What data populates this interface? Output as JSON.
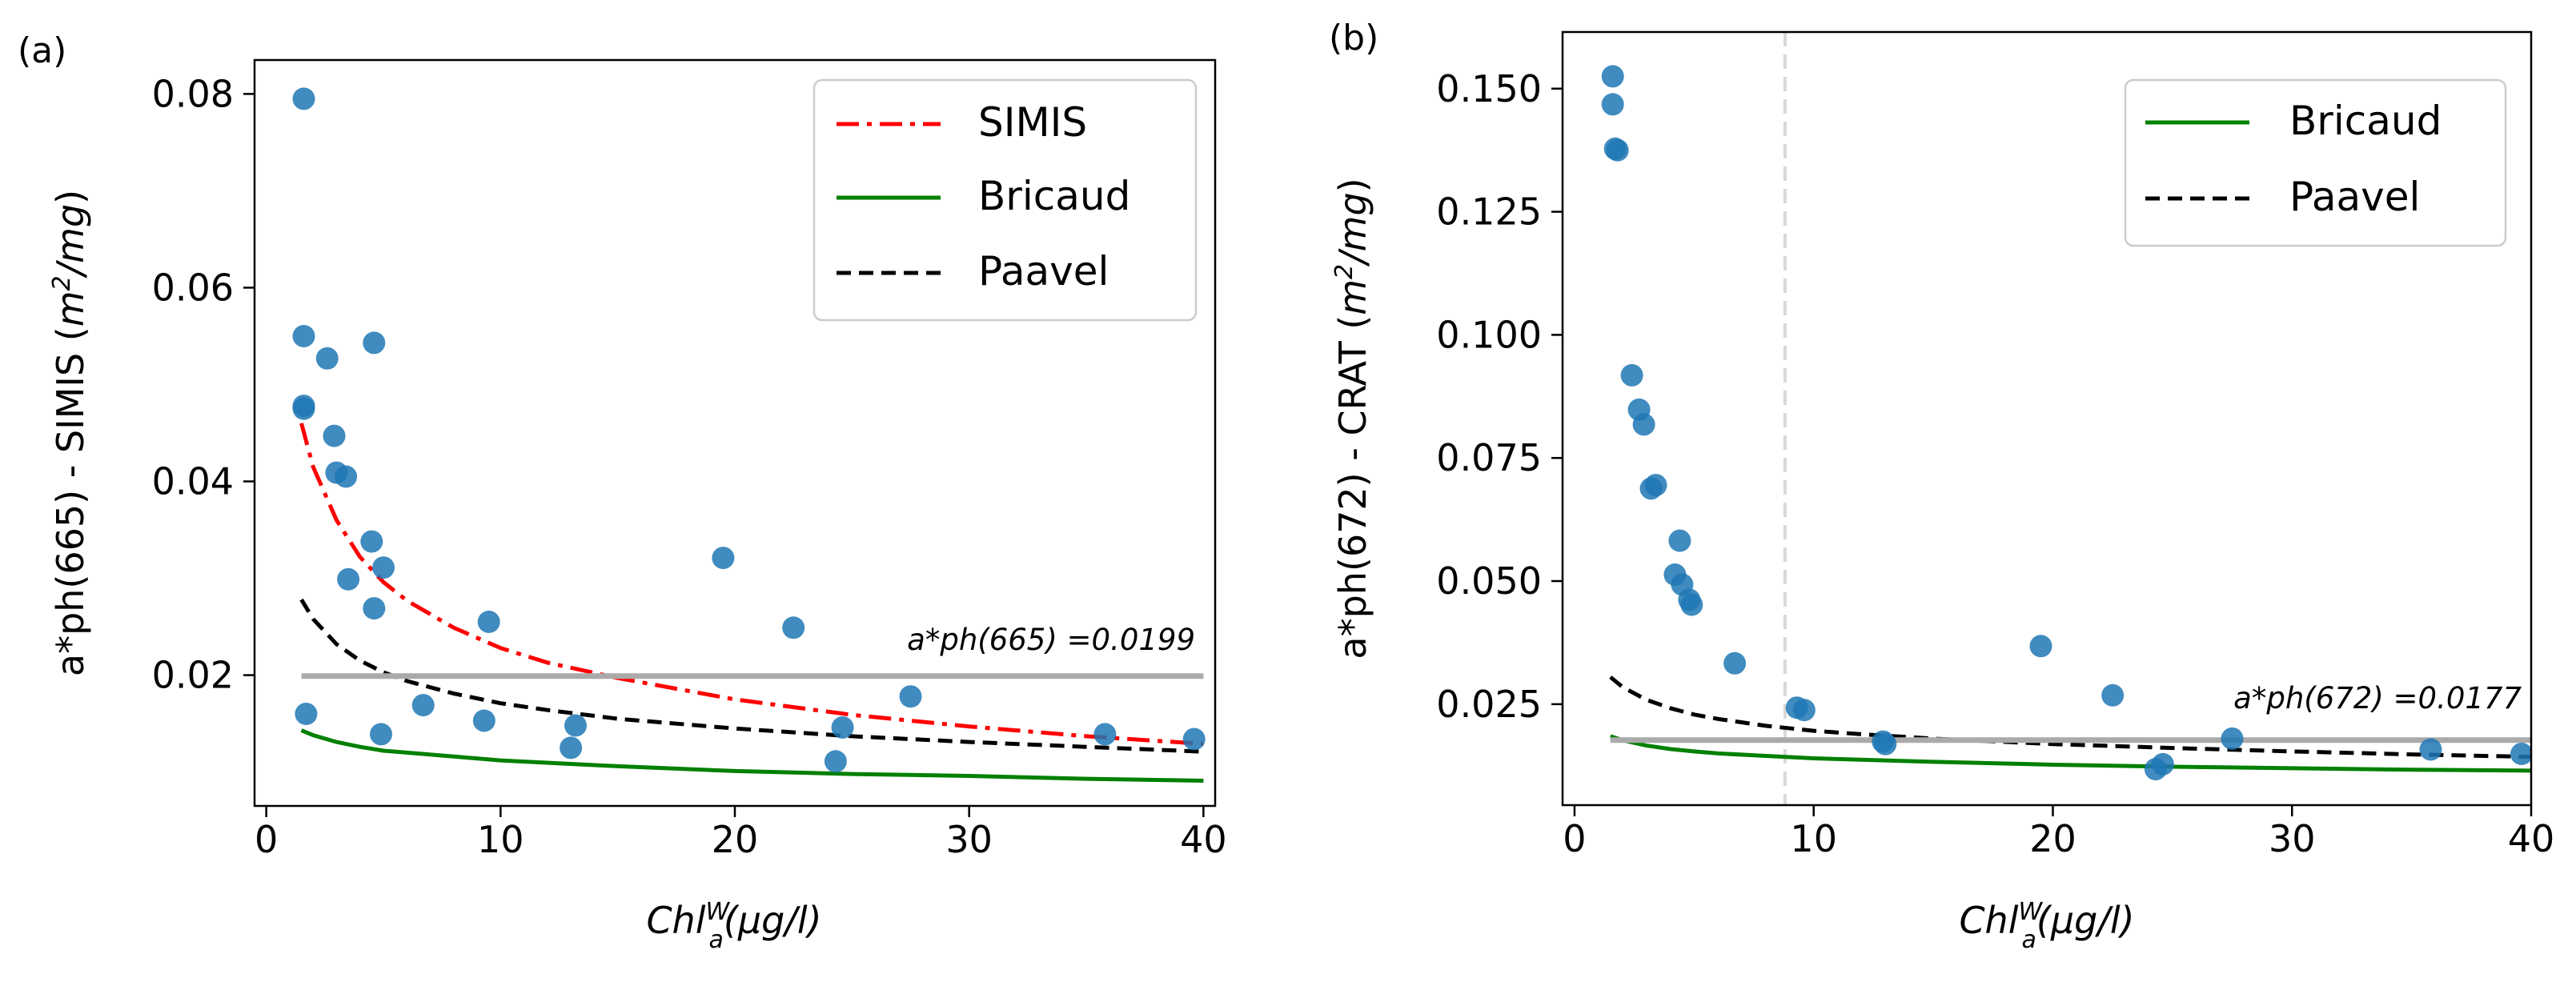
{
  "chart_data": [
    {
      "type": "scatter",
      "panel_label": "(a)",
      "ylabel": "a*ph(665) - SIMIS (m²/mg)",
      "ylabel_prefix": "a*ph(665) - SIMIS (",
      "ylabel_unit_base": "m",
      "ylabel_unit_sup": "2",
      "ylabel_unit_rest": "/mg",
      "ylabel_suffix": ")",
      "xlabel": "Chl_a^W(µg/l)",
      "xlabel_base": "Chl",
      "xlabel_sup": "W",
      "xlabel_sub": "a",
      "xlabel_rest": "(µg/l)",
      "xlim": [
        -0.5,
        40.5
      ],
      "ylim": [
        0.0065,
        0.0835
      ],
      "xticks": [
        0,
        10,
        20,
        30,
        40
      ],
      "yticks": [
        0.02,
        0.04,
        0.06,
        0.08
      ],
      "ytick_labels": [
        "0.02",
        "0.04",
        "0.06",
        "0.08"
      ],
      "points": [
        [
          1.6,
          0.0795
        ],
        [
          1.6,
          0.055
        ],
        [
          2.6,
          0.0527
        ],
        [
          4.6,
          0.0543
        ],
        [
          1.6,
          0.0478
        ],
        [
          1.6,
          0.0475
        ],
        [
          2.9,
          0.0447
        ],
        [
          3.0,
          0.0409
        ],
        [
          3.4,
          0.0405
        ],
        [
          4.5,
          0.0338
        ],
        [
          5.0,
          0.0311
        ],
        [
          3.5,
          0.0299
        ],
        [
          4.6,
          0.0269
        ],
        [
          9.5,
          0.0255
        ],
        [
          19.5,
          0.0321
        ],
        [
          22.5,
          0.0249
        ],
        [
          27.5,
          0.0178
        ],
        [
          1.7,
          0.016
        ],
        [
          4.9,
          0.0139
        ],
        [
          6.7,
          0.0169
        ],
        [
          9.3,
          0.0153
        ],
        [
          13.2,
          0.0148
        ],
        [
          13.0,
          0.0125
        ],
        [
          24.6,
          0.0146
        ],
        [
          24.3,
          0.0111
        ],
        [
          35.8,
          0.0139
        ],
        [
          39.6,
          0.0134
        ]
      ],
      "series": [
        {
          "name": "SIMIS",
          "style": "dashdot",
          "color": "#ff0000",
          "x": [
            1.5,
            2,
            3,
            4,
            5,
            6,
            8,
            10,
            12,
            15,
            20,
            25,
            30,
            35,
            40
          ],
          "y": [
            0.046,
            0.0415,
            0.036,
            0.0322,
            0.0296,
            0.0277,
            0.0249,
            0.0228,
            0.0213,
            0.0197,
            0.0175,
            0.0159,
            0.0147,
            0.0137,
            0.0129
          ]
        },
        {
          "name": "Bricaud",
          "style": "solid",
          "color": "#008000",
          "x": [
            1.5,
            2,
            3,
            4,
            5,
            6,
            8,
            10,
            15,
            20,
            25,
            30,
            35,
            40
          ],
          "y": [
            0.0143,
            0.0138,
            0.0131,
            0.0126,
            0.0122,
            0.012,
            0.0116,
            0.0112,
            0.0106,
            0.0101,
            0.0098,
            0.0096,
            0.0093,
            0.0091
          ]
        },
        {
          "name": "Paavel",
          "style": "dashed",
          "color": "#000000",
          "x": [
            1.5,
            2,
            3,
            4,
            5,
            6,
            8,
            10,
            12,
            15,
            20,
            25,
            30,
            35,
            40
          ],
          "y": [
            0.0278,
            0.0258,
            0.0232,
            0.0215,
            0.0203,
            0.0194,
            0.0181,
            0.0171,
            0.0164,
            0.0155,
            0.0145,
            0.0137,
            0.0131,
            0.0126,
            0.0121
          ]
        }
      ],
      "reference_line": {
        "y": 0.0199,
        "color": "#aaaaaa",
        "label": "a*ph(665) =0.0199"
      },
      "vertical_line": null,
      "legend": {
        "position": "top-right",
        "entries": [
          "SIMIS",
          "Bricaud",
          "Paavel"
        ]
      },
      "grid": false
    },
    {
      "type": "scatter",
      "panel_label": "(b)",
      "ylabel": "a*ph(672) - CRAT (m²/mg)",
      "ylabel_prefix": "a*ph(672) - CRAT (",
      "ylabel_unit_base": "m",
      "ylabel_unit_sup": "2",
      "ylabel_unit_rest": "/mg",
      "ylabel_suffix": ")",
      "xlabel": "Chl_a^W(µg/l)",
      "xlabel_base": "Chl",
      "xlabel_sup": "W",
      "xlabel_sub": "a",
      "xlabel_rest": "(µg/l)",
      "xlim": [
        -0.5,
        40.0
      ],
      "ylim": [
        0.0045,
        0.1615
      ],
      "xticks": [
        0,
        10,
        20,
        30,
        40
      ],
      "yticks": [
        0.025,
        0.05,
        0.075,
        0.1,
        0.125,
        0.15
      ],
      "ytick_labels": [
        "0.025",
        "0.050",
        "0.075",
        "0.100",
        "0.125",
        "0.150"
      ],
      "points": [
        [
          1.6,
          0.1525
        ],
        [
          1.6,
          0.1468
        ],
        [
          1.7,
          0.1378
        ],
        [
          1.8,
          0.1375
        ],
        [
          2.4,
          0.0918
        ],
        [
          2.7,
          0.0848
        ],
        [
          2.9,
          0.0818
        ],
        [
          3.2,
          0.0688
        ],
        [
          3.4,
          0.0695
        ],
        [
          4.4,
          0.0582
        ],
        [
          4.2,
          0.0513
        ],
        [
          4.5,
          0.0493
        ],
        [
          4.8,
          0.0462
        ],
        [
          4.9,
          0.0452
        ],
        [
          6.7,
          0.0333
        ],
        [
          9.3,
          0.0243
        ],
        [
          9.6,
          0.0238
        ],
        [
          12.9,
          0.0174
        ],
        [
          13.0,
          0.0169
        ],
        [
          19.5,
          0.0368
        ],
        [
          22.5,
          0.0268
        ],
        [
          24.3,
          0.0118
        ],
        [
          24.6,
          0.0128
        ],
        [
          27.5,
          0.018
        ],
        [
          35.8,
          0.0158
        ],
        [
          39.6,
          0.0149
        ]
      ],
      "series": [
        {
          "name": "Bricaud",
          "style": "solid",
          "color": "#008000",
          "x": [
            1.5,
            2,
            3,
            4,
            5,
            6,
            8,
            10,
            15,
            20,
            25,
            30,
            35,
            40
          ],
          "y": [
            0.0185,
            0.0177,
            0.0166,
            0.0159,
            0.0154,
            0.015,
            0.0145,
            0.014,
            0.0133,
            0.0127,
            0.0123,
            0.012,
            0.0117,
            0.0115
          ]
        },
        {
          "name": "Paavel",
          "style": "dashed",
          "color": "#000000",
          "x": [
            1.5,
            2,
            3,
            4,
            5,
            6,
            8,
            10,
            12,
            15,
            20,
            25,
            30,
            35,
            40
          ],
          "y": [
            0.0305,
            0.0285,
            0.0259,
            0.0242,
            0.0229,
            0.022,
            0.0206,
            0.0196,
            0.0189,
            0.018,
            0.0169,
            0.0161,
            0.0154,
            0.0148,
            0.0143
          ]
        }
      ],
      "reference_line": {
        "y": 0.0177,
        "color": "#aaaaaa",
        "label": "a*ph(672) =0.0177"
      },
      "vertical_line": {
        "x": 8.8,
        "color": "#d8d8d8"
      },
      "legend": {
        "position": "top-right",
        "entries": [
          "Bricaud",
          "Paavel"
        ]
      },
      "grid": false
    }
  ]
}
